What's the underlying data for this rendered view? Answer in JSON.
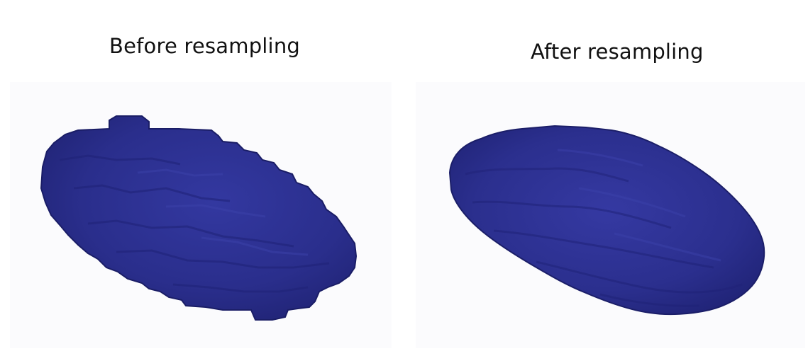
{
  "panels": [
    {
      "caption": "Before resampling",
      "object_color": "#2b2f8f"
    },
    {
      "caption": "After resampling",
      "object_color": "#2d3290"
    }
  ],
  "colors": {
    "background": "#ffffff",
    "object_dark": "#1c1f6e",
    "object_mid": "#2b2f8f",
    "object_light": "#3a40a6"
  }
}
